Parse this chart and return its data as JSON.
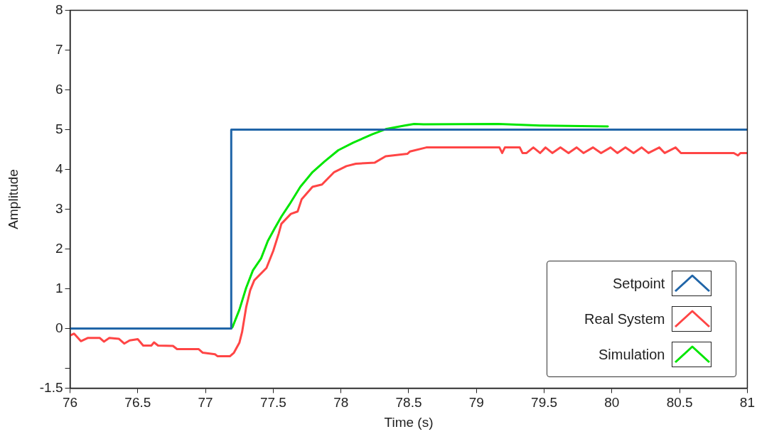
{
  "chart_data": {
    "type": "line",
    "xlabel": "Time (s)",
    "ylabel": "Amplitude",
    "xlim": [
      76,
      81
    ],
    "xticks": [
      76,
      76.5,
      77,
      77.5,
      78,
      78.5,
      79,
      79.5,
      80,
      80.5,
      81
    ],
    "ylim": [
      -1.5,
      8
    ],
    "yticks": [
      -1.5,
      {
        "value": -1,
        "label": null
      },
      0,
      1,
      2,
      3,
      4,
      5,
      6,
      7,
      8
    ],
    "grid": false,
    "legend": "bottom right",
    "marker": "none",
    "line_style": "solid",
    "series": [
      {
        "name": "Setpoint",
        "color": "#2065a8",
        "x": [
          76,
          77.19,
          77.19,
          81
        ],
        "values": [
          0,
          0,
          5,
          5
        ]
      },
      {
        "name": "Real System",
        "color": "#ff4545",
        "x": [
          76.0,
          76.03,
          76.08,
          76.13,
          76.22,
          76.25,
          76.29,
          76.36,
          76.4,
          76.44,
          76.5,
          76.54,
          76.6,
          76.62,
          76.65,
          76.76,
          76.79,
          76.95,
          76.98,
          77.07,
          77.09,
          77.18,
          77.21,
          77.25,
          77.27,
          77.3,
          77.33,
          77.36,
          77.45,
          77.5,
          77.54,
          77.56,
          77.63,
          77.68,
          77.71,
          77.79,
          77.86,
          77.95,
          78.04,
          78.11,
          78.25,
          78.33,
          78.49,
          78.51,
          78.63,
          79.17,
          79.19,
          79.21,
          79.32,
          79.34,
          79.37,
          79.42,
          79.47,
          79.51,
          79.56,
          79.62,
          79.68,
          79.74,
          79.79,
          79.86,
          79.92,
          79.99,
          80.04,
          80.1,
          80.16,
          80.22,
          80.27,
          80.35,
          80.39,
          80.47,
          80.51,
          80.9,
          80.93,
          80.95,
          81.0
        ],
        "values": [
          -0.18,
          -0.13,
          -0.32,
          -0.24,
          -0.24,
          -0.33,
          -0.24,
          -0.26,
          -0.38,
          -0.3,
          -0.27,
          -0.43,
          -0.43,
          -0.35,
          -0.43,
          -0.44,
          -0.52,
          -0.52,
          -0.61,
          -0.65,
          -0.7,
          -0.7,
          -0.61,
          -0.36,
          -0.09,
          0.53,
          0.96,
          1.21,
          1.52,
          1.95,
          2.38,
          2.63,
          2.88,
          2.94,
          3.25,
          3.56,
          3.62,
          3.93,
          4.08,
          4.14,
          4.17,
          4.33,
          4.39,
          4.45,
          4.55,
          4.55,
          4.41,
          4.55,
          4.55,
          4.41,
          4.41,
          4.55,
          4.41,
          4.55,
          4.41,
          4.55,
          4.41,
          4.55,
          4.41,
          4.55,
          4.41,
          4.55,
          4.41,
          4.55,
          4.41,
          4.55,
          4.41,
          4.55,
          4.41,
          4.55,
          4.41,
          4.41,
          4.35,
          4.41,
          4.41
        ]
      },
      {
        "name": "Simulation",
        "color": "#00e600",
        "x": [
          77.19,
          77.2,
          77.25,
          77.3,
          77.35,
          77.41,
          77.46,
          77.51,
          77.56,
          77.62,
          77.7,
          77.79,
          77.88,
          77.98,
          78.09,
          78.23,
          78.33,
          78.47,
          78.54,
          78.61,
          79.16,
          79.47,
          79.97
        ],
        "values": [
          0,
          0.04,
          0.47,
          1.02,
          1.46,
          1.76,
          2.2,
          2.51,
          2.81,
          3.12,
          3.56,
          3.93,
          4.2,
          4.48,
          4.67,
          4.88,
          5.01,
          5.1,
          5.14,
          5.13,
          5.14,
          5.1,
          5.08
        ]
      }
    ]
  }
}
